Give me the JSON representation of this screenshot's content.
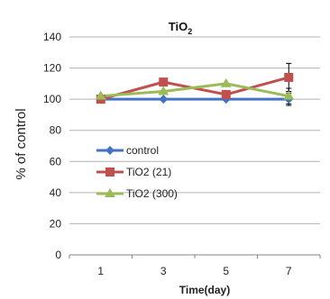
{
  "chart_data": {
    "type": "line",
    "title_base": "TiO",
    "title_sub": "2",
    "xlabel": "Time(day)",
    "ylabel": "% of control",
    "x": [
      1,
      3,
      5,
      7
    ],
    "ylim": [
      0,
      140
    ],
    "yticks": [
      0,
      20,
      40,
      60,
      80,
      100,
      120,
      140
    ],
    "grid": true,
    "legend_position": "left-center",
    "series": [
      {
        "name": "control",
        "color": "#4472C4",
        "marker": "diamond",
        "values": [
          100,
          100,
          100,
          100
        ],
        "error": [
          0,
          0,
          0,
          4
        ]
      },
      {
        "name": "TiO2 (21)",
        "color": "#C0504D",
        "marker": "square",
        "values": [
          100,
          111,
          103,
          114
        ],
        "error": [
          0,
          0,
          0,
          9
        ]
      },
      {
        "name": "TiO2 (300)",
        "color": "#9BBB59",
        "marker": "triangle",
        "values": [
          102,
          105,
          110,
          102
        ],
        "error": [
          0,
          0,
          0,
          5
        ]
      }
    ]
  }
}
